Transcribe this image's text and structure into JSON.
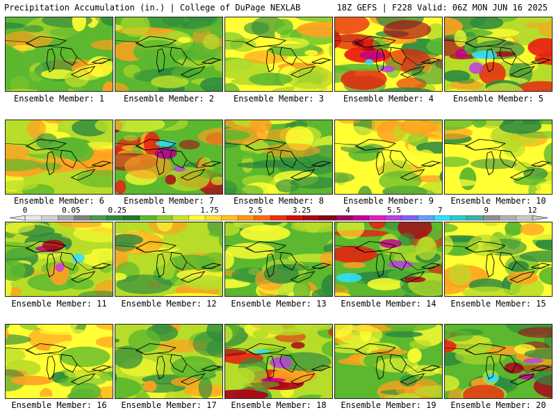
{
  "header": {
    "title_left": "Precipitation Accumulation (in.) | College of DuPage NEXLAB",
    "title_right": "18Z GEFS | F228 Valid: 06Z MON JUN 16 2025"
  },
  "members": [
    "Ensemble Member: 1",
    "Ensemble Member: 2",
    "Ensemble Member: 3",
    "Ensemble Member: 4",
    "Ensemble Member: 5",
    "Ensemble Member: 6",
    "Ensemble Member: 7",
    "Ensemble Member: 8",
    "Ensemble Member: 9",
    "Ensemble Member: 10",
    "Ensemble Member: 11",
    "Ensemble Member: 12",
    "Ensemble Member: 13",
    "Ensemble Member: 14",
    "Ensemble Member: 15",
    "Ensemble Member: 16",
    "Ensemble Member: 17",
    "Ensemble Member: 18",
    "Ensemble Member: 19",
    "Ensemble Member: 20"
  ],
  "legend": {
    "labels": [
      "0",
      "0.05",
      "0.25",
      "1",
      "1.75",
      "2.5",
      "3.25",
      "4",
      "5.5",
      "7",
      "9",
      "12"
    ],
    "colors": [
      "#e8e8e8",
      "#d0d0d0",
      "#a8a8a8",
      "#808080",
      "#4a9a5a",
      "#2e8b3e",
      "#1f7a2f",
      "#5cb82e",
      "#8fcf2a",
      "#c8e62a",
      "#ffff33",
      "#ffe033",
      "#ffc020",
      "#ff9a10",
      "#ff6a10",
      "#f03010",
      "#d01010",
      "#a80818",
      "#800818",
      "#a00060",
      "#c00090",
      "#e020c0",
      "#c040e0",
      "#8060f0",
      "#60a0ff",
      "#30e0ff",
      "#30c8c8",
      "#40b0a0",
      "#909090",
      "#b0b0b0",
      "#c8c8c8"
    ]
  },
  "colors": {
    "dark_green": "#2e8b3e",
    "green": "#5cb82e",
    "yellow_green": "#b8dc2a",
    "yellow": "#ffff33",
    "orange": "#ffa020",
    "red": "#e82010",
    "dark_red": "#a80818",
    "magenta": "#c00090",
    "violet": "#c040e0",
    "cyan": "#30e0ff"
  }
}
